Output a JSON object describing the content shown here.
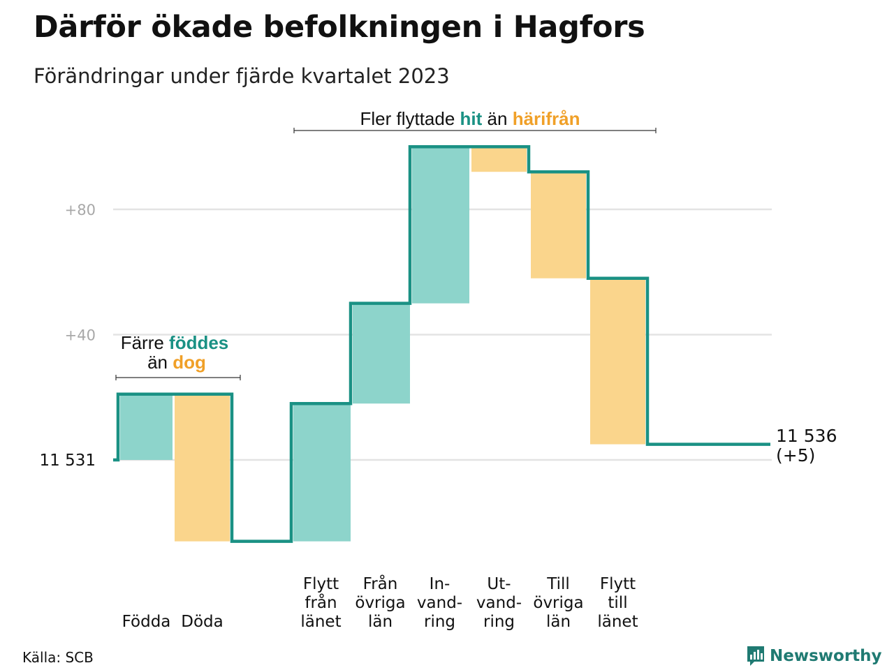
{
  "title": "Därför ökade befolkningen i Hagfors",
  "subtitle": "Förändringar under fjärde kvartalet 2023",
  "source": "Källa: SCB",
  "brand": "Newsworthy",
  "colors": {
    "inflow": "#8dd4cb",
    "outflow": "#fad58c",
    "line": "#1a9184",
    "accent_teal": "#1a9184",
    "accent_orange": "#f0a028",
    "grid": "#e3e3e3",
    "tick": "#a8a8a8"
  },
  "annotations": {
    "births_deaths": {
      "line1_plain": "Färre",
      "line1_hl": "föddes",
      "line2_plain": "än",
      "line2_hl": "dog"
    },
    "migration": {
      "plain1": "Fler flyttade",
      "hl1": "hit",
      "plain2": "än",
      "hl2": "härifrån"
    }
  },
  "chart_data": {
    "type": "waterfall",
    "start_label": "11  531",
    "end_label_value": "11 536",
    "end_label_change": "(+5)",
    "yticks": [
      {
        "value": 80,
        "label": "+80"
      },
      {
        "value": 40,
        "label": "+40"
      }
    ],
    "ylim": [
      -30,
      100
    ],
    "steps": [
      {
        "name": "births",
        "label_lines": [
          "Födda"
        ],
        "change": 21,
        "kind": "inflow"
      },
      {
        "name": "deaths",
        "label_lines": [
          "Döda"
        ],
        "change": -47,
        "kind": "outflow"
      },
      {
        "name": "gap",
        "label_lines": [],
        "change": 0,
        "kind": "none"
      },
      {
        "name": "from-county",
        "label_lines": [
          "Flytt",
          "från",
          "länet"
        ],
        "change": 44,
        "kind": "inflow"
      },
      {
        "name": "from-other-counties",
        "label_lines": [
          "Från",
          "övriga",
          "län"
        ],
        "change": 32,
        "kind": "inflow"
      },
      {
        "name": "immigration",
        "label_lines": [
          "In-",
          "vand-",
          "ring"
        ],
        "change": 50,
        "kind": "inflow"
      },
      {
        "name": "emigration",
        "label_lines": [
          "Ut-",
          "vand-",
          "ring"
        ],
        "change": -8,
        "kind": "outflow"
      },
      {
        "name": "to-other-counties",
        "label_lines": [
          "Till",
          "övriga",
          "län"
        ],
        "change": -34,
        "kind": "outflow"
      },
      {
        "name": "to-county",
        "label_lines": [
          "Flytt",
          "till",
          "länet"
        ],
        "change": -53,
        "kind": "outflow"
      }
    ],
    "final_change": 5
  }
}
